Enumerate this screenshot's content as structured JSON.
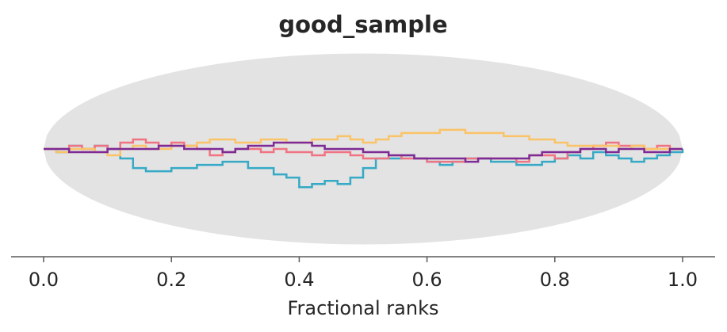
{
  "chart_data": {
    "type": "line",
    "title": "good_sample",
    "xlabel": "Fractional ranks",
    "ylabel": "",
    "xlim": [
      0.0,
      1.0
    ],
    "ylim": [
      -0.33,
      0.33
    ],
    "xticks": [
      0.0,
      0.2,
      0.4,
      0.6,
      0.8,
      1.0
    ],
    "xtick_labels": [
      "0.0",
      "0.2",
      "0.4",
      "0.6",
      "0.8",
      "1.0"
    ],
    "y_axis_visible": false,
    "grid": false,
    "legend": "none",
    "envelope": {
      "shape": "ellipse",
      "fill": "#e3e3e3",
      "half_height_at_center": 0.3
    },
    "series": [
      {
        "color": "#35a9c6",
        "x": [
          0.0,
          0.02,
          0.04,
          0.06,
          0.08,
          0.1,
          0.12,
          0.14,
          0.16,
          0.2,
          0.24,
          0.28,
          0.32,
          0.36,
          0.38,
          0.4,
          0.42,
          0.44,
          0.46,
          0.48,
          0.5,
          0.52,
          0.54,
          0.56,
          0.58,
          0.6,
          0.62,
          0.64,
          0.66,
          0.7,
          0.74,
          0.78,
          0.8,
          0.82,
          0.84,
          0.86,
          0.88,
          0.9,
          0.92,
          0.94,
          0.96,
          0.98,
          1.0
        ],
        "y": [
          0.0,
          -0.01,
          0.01,
          0.0,
          0.01,
          0.0,
          -0.03,
          -0.06,
          -0.07,
          -0.06,
          -0.05,
          -0.04,
          -0.06,
          -0.08,
          -0.09,
          -0.12,
          -0.11,
          -0.1,
          -0.11,
          -0.09,
          -0.06,
          -0.03,
          -0.03,
          -0.02,
          -0.03,
          -0.04,
          -0.05,
          -0.04,
          -0.03,
          -0.04,
          -0.05,
          -0.04,
          -0.03,
          -0.02,
          -0.03,
          -0.01,
          -0.02,
          -0.03,
          -0.04,
          -0.03,
          -0.02,
          -0.01,
          0.0
        ]
      },
      {
        "color": "#f07382",
        "x": [
          0.0,
          0.02,
          0.04,
          0.06,
          0.08,
          0.1,
          0.12,
          0.14,
          0.16,
          0.18,
          0.2,
          0.22,
          0.24,
          0.26,
          0.28,
          0.3,
          0.32,
          0.34,
          0.36,
          0.38,
          0.4,
          0.42,
          0.44,
          0.46,
          0.48,
          0.5,
          0.52,
          0.54,
          0.56,
          0.58,
          0.6,
          0.62,
          0.66,
          0.7,
          0.74,
          0.76,
          0.8,
          0.82,
          0.84,
          0.86,
          0.88,
          0.9,
          0.92,
          0.94,
          0.96,
          0.98,
          1.0
        ],
        "y": [
          0.0,
          0.0,
          0.01,
          0.0,
          0.01,
          0.0,
          0.02,
          0.03,
          0.02,
          0.01,
          0.02,
          0.01,
          0.0,
          -0.02,
          -0.01,
          0.0,
          0.0,
          -0.01,
          0.0,
          -0.01,
          -0.01,
          -0.02,
          -0.01,
          -0.01,
          -0.02,
          -0.03,
          -0.03,
          -0.02,
          -0.03,
          -0.03,
          -0.04,
          -0.04,
          -0.03,
          -0.03,
          -0.04,
          -0.02,
          -0.03,
          -0.01,
          0.0,
          0.01,
          0.02,
          0.01,
          0.01,
          0.0,
          0.01,
          0.0,
          0.0
        ]
      },
      {
        "color": "#fbc367",
        "x": [
          0.0,
          0.02,
          0.04,
          0.06,
          0.08,
          0.1,
          0.12,
          0.14,
          0.16,
          0.18,
          0.2,
          0.22,
          0.24,
          0.26,
          0.28,
          0.3,
          0.32,
          0.34,
          0.36,
          0.38,
          0.4,
          0.42,
          0.44,
          0.46,
          0.48,
          0.5,
          0.52,
          0.54,
          0.56,
          0.58,
          0.6,
          0.62,
          0.64,
          0.66,
          0.68,
          0.7,
          0.72,
          0.74,
          0.76,
          0.78,
          0.8,
          0.82,
          0.84,
          0.86,
          0.88,
          0.9,
          0.92,
          0.94,
          0.96,
          0.98,
          1.0
        ],
        "y": [
          0.0,
          -0.01,
          0.0,
          0.0,
          -0.01,
          -0.02,
          0.0,
          0.01,
          0.0,
          0.0,
          0.01,
          0.01,
          0.02,
          0.03,
          0.03,
          0.02,
          0.02,
          0.03,
          0.03,
          0.02,
          0.02,
          0.03,
          0.03,
          0.04,
          0.03,
          0.02,
          0.03,
          0.04,
          0.05,
          0.05,
          0.05,
          0.06,
          0.06,
          0.05,
          0.05,
          0.05,
          0.04,
          0.04,
          0.03,
          0.03,
          0.02,
          0.01,
          0.01,
          0.01,
          0.01,
          0.0,
          0.01,
          0.0,
          0.0,
          0.0,
          0.0
        ]
      },
      {
        "color": "#7e2a95",
        "x": [
          0.0,
          0.02,
          0.04,
          0.06,
          0.08,
          0.1,
          0.12,
          0.14,
          0.16,
          0.18,
          0.2,
          0.22,
          0.24,
          0.26,
          0.28,
          0.3,
          0.32,
          0.34,
          0.36,
          0.38,
          0.4,
          0.42,
          0.44,
          0.46,
          0.48,
          0.5,
          0.52,
          0.54,
          0.56,
          0.58,
          0.6,
          0.62,
          0.64,
          0.66,
          0.68,
          0.7,
          0.72,
          0.74,
          0.76,
          0.78,
          0.8,
          0.82,
          0.84,
          0.86,
          0.88,
          0.9,
          0.92,
          0.94,
          0.96,
          0.98,
          1.0
        ],
        "y": [
          0.0,
          0.0,
          -0.01,
          -0.01,
          -0.01,
          0.0,
          0.0,
          0.0,
          0.0,
          0.01,
          0.01,
          0.0,
          0.0,
          0.0,
          -0.01,
          0.0,
          0.01,
          0.01,
          0.02,
          0.02,
          0.02,
          0.01,
          0.0,
          0.0,
          0.0,
          -0.01,
          -0.01,
          -0.02,
          -0.02,
          -0.03,
          -0.03,
          -0.03,
          -0.03,
          -0.04,
          -0.03,
          -0.03,
          -0.03,
          -0.03,
          -0.02,
          -0.01,
          -0.01,
          -0.01,
          0.0,
          0.0,
          -0.01,
          0.0,
          0.0,
          -0.01,
          -0.01,
          0.0,
          0.0
        ]
      }
    ]
  }
}
